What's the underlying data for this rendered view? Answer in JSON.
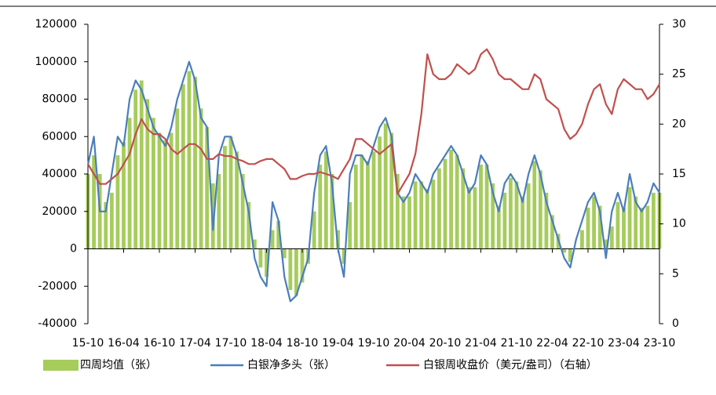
{
  "chart_data": {
    "type": "bar_line_dual",
    "categories": [
      "15-10",
      null,
      null,
      null,
      null,
      null,
      "16-04",
      null,
      null,
      null,
      null,
      null,
      "16-10",
      null,
      null,
      null,
      null,
      null,
      "17-04",
      null,
      null,
      null,
      null,
      null,
      "17-10",
      null,
      null,
      null,
      null,
      null,
      "18-04",
      null,
      null,
      null,
      null,
      null,
      "18-10",
      null,
      null,
      null,
      null,
      null,
      "19-04",
      null,
      null,
      null,
      null,
      null,
      "19-10",
      null,
      null,
      null,
      null,
      null,
      "20-04",
      null,
      null,
      null,
      null,
      null,
      "20-10",
      null,
      null,
      null,
      null,
      null,
      "21-04",
      null,
      null,
      null,
      null,
      null,
      "21-10",
      null,
      null,
      null,
      null,
      null,
      "22-04",
      null,
      null,
      null,
      null,
      null,
      "22-10",
      null,
      null,
      null,
      null,
      null,
      "23-04",
      null,
      null,
      null,
      null,
      null,
      "23-10"
    ],
    "series": [
      {
        "name": "四周均值（张）",
        "color": "#a6cc5c",
        "kind": "bar",
        "values": [
          40000,
          50000,
          40000,
          25000,
          30000,
          50000,
          57000,
          70000,
          85000,
          90000,
          80000,
          70000,
          62000,
          58000,
          62000,
          75000,
          88000,
          95000,
          92000,
          75000,
          65000,
          35000,
          40000,
          55000,
          60000,
          52000,
          40000,
          25000,
          5000,
          -10000,
          -15000,
          10000,
          15000,
          -5000,
          -22000,
          -25000,
          -18000,
          -8000,
          20000,
          45000,
          52000,
          40000,
          10000,
          -8000,
          25000,
          45000,
          50000,
          47000,
          52000,
          60000,
          67000,
          62000,
          40000,
          28000,
          28000,
          36000,
          36000,
          32000,
          37000,
          43000,
          48000,
          53000,
          50000,
          43000,
          33000,
          33000,
          45000,
          45000,
          35000,
          23000,
          30000,
          38000,
          36000,
          28000,
          35000,
          47000,
          42000,
          30000,
          18000,
          8000,
          -2000,
          -7000,
          0,
          10000,
          22000,
          28000,
          23000,
          5000,
          12000,
          25000,
          22000,
          33000,
          28000,
          22000,
          23000,
          30000,
          30000
        ]
      },
      {
        "name": "白银净多头（张）",
        "color": "#4a7ebb",
        "kind": "line",
        "values": [
          45000,
          60000,
          20000,
          20000,
          40000,
          60000,
          55000,
          80000,
          90000,
          85000,
          75000,
          65000,
          60000,
          55000,
          65000,
          80000,
          90000,
          100000,
          90000,
          70000,
          65000,
          10000,
          50000,
          60000,
          60000,
          50000,
          35000,
          20000,
          -5000,
          -15000,
          -20000,
          25000,
          15000,
          -15000,
          -28000,
          -25000,
          -15000,
          -5000,
          30000,
          50000,
          55000,
          35000,
          0,
          -15000,
          40000,
          50000,
          50000,
          45000,
          55000,
          65000,
          70000,
          60000,
          30000,
          25000,
          30000,
          40000,
          35000,
          30000,
          40000,
          45000,
          50000,
          55000,
          50000,
          40000,
          30000,
          35000,
          50000,
          45000,
          30000,
          20000,
          35000,
          40000,
          35000,
          25000,
          40000,
          50000,
          40000,
          25000,
          15000,
          5000,
          -5000,
          -10000,
          5000,
          15000,
          25000,
          30000,
          20000,
          -5000,
          20000,
          30000,
          20000,
          40000,
          25000,
          20000,
          25000,
          35000,
          30000
        ]
      },
      {
        "name": "白银周收盘价（美元/盎司）（右轴）",
        "color": "#c0504d",
        "kind": "line",
        "axis": "y2",
        "values": [
          16,
          15,
          14,
          14,
          14.5,
          15,
          16,
          17,
          19,
          20.5,
          19.5,
          19,
          19,
          18.5,
          17.5,
          17,
          17.5,
          18,
          18,
          17.5,
          16.5,
          16.5,
          17,
          16.8,
          16.8,
          16.5,
          16.3,
          16,
          16,
          16.3,
          16.5,
          16.5,
          16,
          15.5,
          14.5,
          14.5,
          14.8,
          15,
          15,
          15.2,
          15,
          14.8,
          14.5,
          15.5,
          16.5,
          18.5,
          18.5,
          18,
          17.5,
          17,
          17.5,
          18,
          13,
          14,
          15,
          17,
          21,
          27,
          25,
          24.5,
          24.5,
          25,
          26,
          25.5,
          25,
          25.5,
          27,
          27.5,
          26.5,
          25,
          24.5,
          24.5,
          24,
          23.5,
          23.5,
          25,
          24.5,
          22.5,
          22,
          21.5,
          19.5,
          18.5,
          19,
          20,
          22,
          23.5,
          24,
          22,
          21,
          23.5,
          24.5,
          24,
          23.5,
          23.5,
          22.5,
          23,
          24
        ]
      }
    ],
    "ylim": [
      -40000,
      120000
    ],
    "yticks": [
      -40000,
      -20000,
      0,
      20000,
      40000,
      60000,
      80000,
      100000,
      120000
    ],
    "y2lim": [
      0,
      30
    ],
    "y2ticks": [
      0,
      5,
      10,
      15,
      20,
      25,
      30
    ]
  }
}
